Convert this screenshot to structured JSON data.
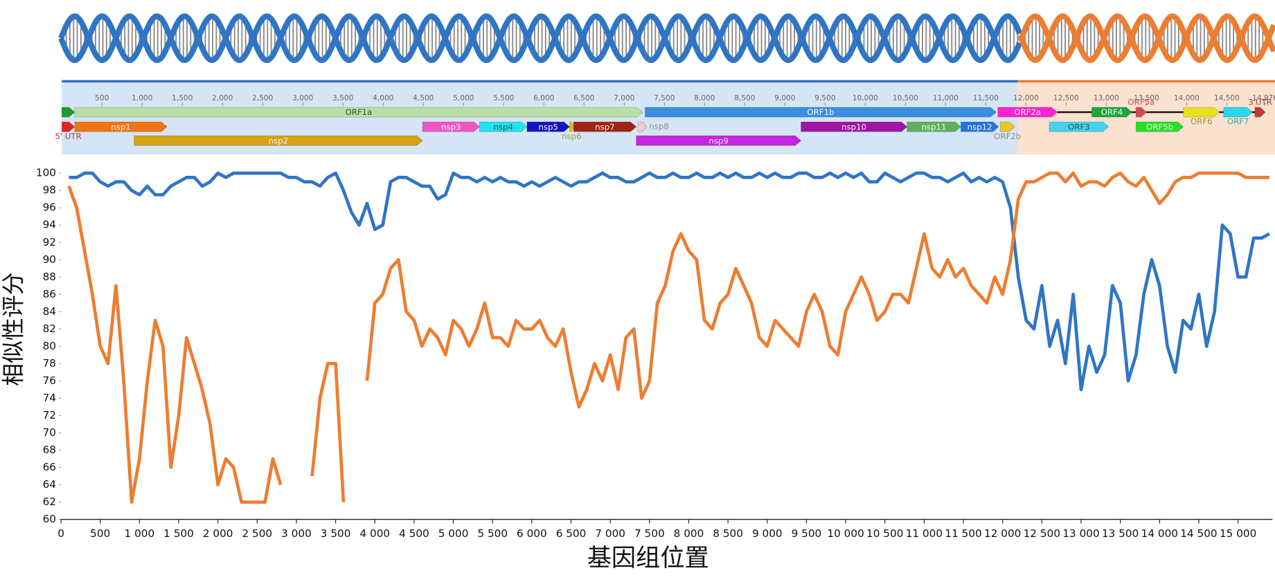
{
  "chart_data": {
    "type": "line",
    "xlabel": "基因组位置",
    "ylabel": "相似性评分",
    "xlim": [
      0,
      15440
    ],
    "ylim": [
      60,
      100
    ],
    "xticks": [
      0,
      500,
      {
        "value": 1000,
        "label": "1 000"
      },
      {
        "value": 1500,
        "label": "1 500"
      },
      {
        "value": 2000,
        "label": "2 000"
      },
      {
        "value": 2500,
        "label": "2 500"
      },
      {
        "value": 3000,
        "label": "3 000"
      },
      {
        "value": 3500,
        "label": "3 500"
      },
      {
        "value": 4000,
        "label": "4 000"
      },
      {
        "value": 4500,
        "label": "4 500"
      },
      {
        "value": 5000,
        "label": "5 000"
      },
      {
        "value": 5500,
        "label": "5 500"
      },
      {
        "value": 6000,
        "label": "6 000"
      },
      {
        "value": 6500,
        "label": "6 500"
      },
      {
        "value": 7000,
        "label": "7 000"
      },
      {
        "value": 7500,
        "label": "7 500"
      },
      {
        "value": 8000,
        "label": "8 000"
      },
      {
        "value": 8500,
        "label": "8 500"
      },
      {
        "value": 9000,
        "label": "9 000"
      },
      {
        "value": 9500,
        "label": "9 500"
      },
      {
        "value": 10000,
        "label": "10 000"
      },
      {
        "value": 10500,
        "label": "10 500"
      },
      {
        "value": 11000,
        "label": "11 000"
      },
      {
        "value": 11500,
        "label": "11 500"
      },
      {
        "value": 12000,
        "label": "12 000"
      },
      {
        "value": 12500,
        "label": "12 500"
      },
      {
        "value": 13000,
        "label": "13 000"
      },
      {
        "value": 13500,
        "label": "13 500"
      },
      {
        "value": 14000,
        "label": "14 000"
      },
      {
        "value": 14500,
        "label": "14 500"
      },
      {
        "value": 15000,
        "label": "15 000"
      }
    ],
    "yticks": [
      60,
      62,
      64,
      66,
      68,
      70,
      72,
      74,
      76,
      78,
      80,
      82,
      84,
      86,
      88,
      90,
      92,
      94,
      96,
      98,
      100
    ],
    "x": [
      100,
      200,
      300,
      400,
      500,
      600,
      700,
      800,
      900,
      1000,
      1100,
      1200,
      1300,
      1400,
      1500,
      1600,
      1700,
      1800,
      1900,
      2000,
      2100,
      2200,
      2300,
      2400,
      2500,
      2600,
      2700,
      2800,
      2900,
      3000,
      3100,
      3200,
      3300,
      3400,
      3500,
      3600,
      3700,
      3800,
      3900,
      4000,
      4100,
      4200,
      4300,
      4400,
      4500,
      4600,
      4700,
      4800,
      4900,
      5000,
      5100,
      5200,
      5300,
      5400,
      5500,
      5600,
      5700,
      5800,
      5900,
      6000,
      6100,
      6200,
      6300,
      6400,
      6500,
      6600,
      6700,
      6800,
      6900,
      7000,
      7100,
      7200,
      7300,
      7400,
      7500,
      7600,
      7700,
      7800,
      7900,
      8000,
      8100,
      8200,
      8300,
      8400,
      8500,
      8600,
      8700,
      8800,
      8900,
      9000,
      9100,
      9200,
      9300,
      9400,
      9500,
      9600,
      9700,
      9800,
      9900,
      10000,
      10100,
      10200,
      10300,
      10400,
      10500,
      10600,
      10700,
      10800,
      10900,
      11000,
      11100,
      11200,
      11300,
      11400,
      11500,
      11600,
      11700,
      11800,
      11900,
      12000,
      12100,
      12200,
      12300,
      12400,
      12500,
      12600,
      12700,
      12800,
      12900,
      13000,
      13100,
      13200,
      13300,
      13400,
      13500,
      13600,
      13700,
      13800,
      13900,
      14000,
      14100,
      14200,
      14300,
      14400,
      14500,
      14600,
      14700,
      14800,
      14900,
      15000,
      15100,
      15200,
      15300,
      15400
    ],
    "series": [
      {
        "color": "#2f75c4",
        "values": [
          99.5,
          99.5,
          100,
          100,
          99,
          98.5,
          99,
          99,
          98,
          97.5,
          98.5,
          97.5,
          97.5,
          98.5,
          99,
          99.5,
          99.5,
          98.5,
          99,
          100,
          99.5,
          100,
          100,
          100,
          100,
          100,
          100,
          100,
          99.5,
          99.5,
          99,
          99,
          98.5,
          99.5,
          100,
          98,
          95.5,
          94,
          96.5,
          93.5,
          94,
          99,
          99.5,
          99.5,
          99,
          98.5,
          98.5,
          97,
          97.5,
          100,
          99.5,
          99.5,
          99,
          99.5,
          99,
          99.5,
          99,
          99,
          98.5,
          99,
          98.5,
          99,
          99.5,
          99,
          98.5,
          99,
          99,
          99.5,
          100,
          99.5,
          99.5,
          99,
          99,
          99.5,
          100,
          99.5,
          99.5,
          100,
          99.5,
          99.5,
          100,
          99.5,
          99.5,
          100,
          99.5,
          100,
          99.5,
          99.5,
          100,
          99.5,
          100,
          99.5,
          99.5,
          100,
          100,
          99.5,
          99.5,
          100,
          99.5,
          100,
          99.5,
          100,
          99,
          99,
          100,
          99.5,
          99,
          99.5,
          100,
          100,
          99.5,
          99.5,
          99,
          99.5,
          100,
          99,
          99.5,
          99,
          99.5,
          99,
          96,
          88,
          83,
          82,
          87,
          80,
          83,
          78,
          86,
          75,
          80,
          77,
          79,
          87,
          85,
          76,
          79,
          86,
          90,
          87,
          80,
          77,
          83,
          82,
          86,
          80,
          84,
          94,
          93,
          88,
          88,
          92.5,
          92.5,
          93
        ]
      },
      {
        "color": "#ed7d31",
        "values": [
          98.5,
          96,
          91,
          86,
          80,
          78,
          87,
          76,
          62,
          67,
          76,
          83,
          80,
          66,
          72,
          81,
          78,
          75,
          71,
          64,
          67,
          66,
          62,
          62,
          62,
          62,
          67,
          64,
          null,
          null,
          null,
          65,
          74,
          78,
          78,
          62,
          null,
          null,
          76,
          85,
          86,
          89,
          90,
          84,
          83,
          80,
          82,
          81,
          79,
          83,
          82,
          80,
          82,
          85,
          81,
          81,
          80,
          83,
          82,
          82,
          83,
          81,
          80,
          82,
          77,
          73,
          75,
          78,
          76,
          79,
          75,
          81,
          82,
          74,
          76,
          85,
          87,
          91,
          93,
          91,
          90,
          83,
          82,
          85,
          86,
          89,
          87,
          85,
          81,
          80,
          83,
          82,
          81,
          80,
          84,
          86,
          84,
          80,
          79,
          84,
          86,
          88,
          86,
          83,
          84,
          86,
          86,
          85,
          89,
          93,
          89,
          88,
          90,
          88,
          89,
          87,
          86,
          85,
          88,
          86,
          90,
          97,
          99,
          99,
          99.5,
          100,
          100,
          99,
          100,
          98.5,
          99,
          99,
          98.5,
          99.5,
          100,
          99,
          98.5,
          99.5,
          98,
          96.5,
          97.5,
          99,
          99.5,
          99.5,
          100,
          100,
          100,
          100,
          100,
          100,
          99.5,
          99.5,
          99.5,
          99.5
        ]
      }
    ]
  },
  "genome_map": {
    "xlim": [
      0,
      15100
    ],
    "ticks": [
      500,
      {
        "value": 1000,
        "label": "1,000"
      },
      {
        "value": 1500,
        "label": "1,500"
      },
      {
        "value": 2000,
        "label": "2,000"
      },
      {
        "value": 2500,
        "label": "2,500"
      },
      {
        "value": 3000,
        "label": "3,000"
      },
      {
        "value": 3500,
        "label": "3,500"
      },
      {
        "value": 4000,
        "label": "4,000"
      },
      {
        "value": 4500,
        "label": "4,500"
      },
      {
        "value": 5000,
        "label": "5,000"
      },
      {
        "value": 5500,
        "label": "5,500"
      },
      {
        "value": 6000,
        "label": "6,000"
      },
      {
        "value": 6500,
        "label": "6,500"
      },
      {
        "value": 7000,
        "label": "7,000"
      },
      {
        "value": 7500,
        "label": "7,500"
      },
      {
        "value": 8000,
        "label": "8,000"
      },
      {
        "value": 8500,
        "label": "8,500"
      },
      {
        "value": 9000,
        "label": "9,000"
      },
      {
        "value": 9500,
        "label": "9,500"
      },
      {
        "value": 10000,
        "label": "10,000"
      },
      {
        "value": 10500,
        "label": "10,500"
      },
      {
        "value": 11000,
        "label": "11,000"
      },
      {
        "value": 11500,
        "label": "11,500"
      },
      {
        "value": 12000,
        "label": "12,000"
      },
      {
        "value": 12500,
        "label": "12,500"
      },
      {
        "value": 13000,
        "label": "13,000"
      },
      {
        "value": 13500,
        "label": "13,500"
      },
      {
        "value": 14000,
        "label": "14,000"
      },
      {
        "value": 14500,
        "label": "14,500"
      },
      {
        "value": 14976,
        "label": "14,976"
      }
    ],
    "regions": [
      {
        "start": 0,
        "end": 11900,
        "color": "#d5e5f5",
        "line": "#2f75c4"
      },
      {
        "start": 11900,
        "end": 15100,
        "color": "#fbe1cf",
        "line": "#ed7d31"
      }
    ],
    "genes": [
      {
        "start": 0,
        "end": 160,
        "row": 1,
        "color": "#1f9b2c"
      },
      {
        "label": "ORF1a",
        "start": 160,
        "end": 7230,
        "row": 1,
        "color": "#b9dfa8"
      },
      {
        "label": "ORF1b",
        "start": 7260,
        "end": 11630,
        "row": 1,
        "color": "#3b8ee0"
      },
      {
        "label": "ORF2a",
        "start": 11650,
        "end": 12390,
        "row": 1,
        "color": "#ff22d4"
      },
      {
        "label": "ORF4",
        "start": 12820,
        "end": 13320,
        "row": 1,
        "color": "#1aa83c"
      },
      {
        "label": "ORF5a",
        "start": 13370,
        "end": 13500,
        "row": 1,
        "color": "#d94848",
        "label_pos": "above",
        "label_color": "#d05050"
      },
      {
        "label": "ORF6",
        "start": 13960,
        "end": 14410,
        "row": 1,
        "color": "#e6e020",
        "label_pos": "below",
        "label_color": "#a09030"
      },
      {
        "label": "ORF7",
        "start": 14460,
        "end": 14820,
        "row": 1,
        "color": "#2ad6ea",
        "label_pos": "below",
        "label_color": "#3aa8a8"
      },
      {
        "label": "3'UTR",
        "start": 14850,
        "end": 14980,
        "row": 1,
        "color": "#c03838",
        "label_pos": "above",
        "label_color": "#a04040"
      },
      {
        "label": "5' UTR",
        "start": 0,
        "end": 160,
        "row": 2,
        "color": "#e02424",
        "label_pos": "below",
        "label_color": "#b04030"
      },
      {
        "label": "nsp1",
        "start": 160,
        "end": 1310,
        "row": 2,
        "color": "#f07414"
      },
      {
        "label": "nsp3",
        "start": 4490,
        "end": 5200,
        "row": 2,
        "color": "#f254c4"
      },
      {
        "label": "nsp4",
        "start": 5200,
        "end": 5790,
        "row": 2,
        "color": "#22e2f2"
      },
      {
        "label": "nsp5",
        "start": 5790,
        "end": 6320,
        "row": 2,
        "color": "#1414c0"
      },
      {
        "label": "nsp6",
        "start": 6320,
        "end": 6370,
        "row": 2,
        "color": "#e0c000",
        "label_pos": "below",
        "label_color": "#9aa040"
      },
      {
        "label": "nsp7",
        "start": 6370,
        "end": 7150,
        "row": 2,
        "color": "#a02414"
      },
      {
        "label": "nsp8",
        "start": 7170,
        "end": 7280,
        "row": 2,
        "color": "#f2cad2",
        "label_pos": "right",
        "label_color": "#909090"
      },
      {
        "label": "nsp10",
        "start": 9200,
        "end": 10520,
        "row": 2,
        "color": "#a014a4"
      },
      {
        "label": "nsp11",
        "start": 10520,
        "end": 11190,
        "row": 2,
        "color": "#5cb25c"
      },
      {
        "label": "nsp12",
        "start": 11190,
        "end": 11660,
        "row": 2,
        "color": "#2474e2"
      },
      {
        "label": "ORF2b",
        "start": 11680,
        "end": 11860,
        "row": 2,
        "color": "#e8c824",
        "label_pos": "below",
        "label_color": "#909090"
      },
      {
        "label": "ORF3",
        "start": 12290,
        "end": 13030,
        "row": 2,
        "color": "#44d2f2"
      },
      {
        "label": "ORF5b",
        "start": 13370,
        "end": 13960,
        "row": 2,
        "color": "#22e222"
      },
      {
        "label": "nsp2",
        "start": 900,
        "end": 4490,
        "row": 3,
        "color": "#d6a414"
      },
      {
        "label": "nsp9",
        "start": 7150,
        "end": 9200,
        "row": 3,
        "color": "#c424e4"
      }
    ]
  }
}
